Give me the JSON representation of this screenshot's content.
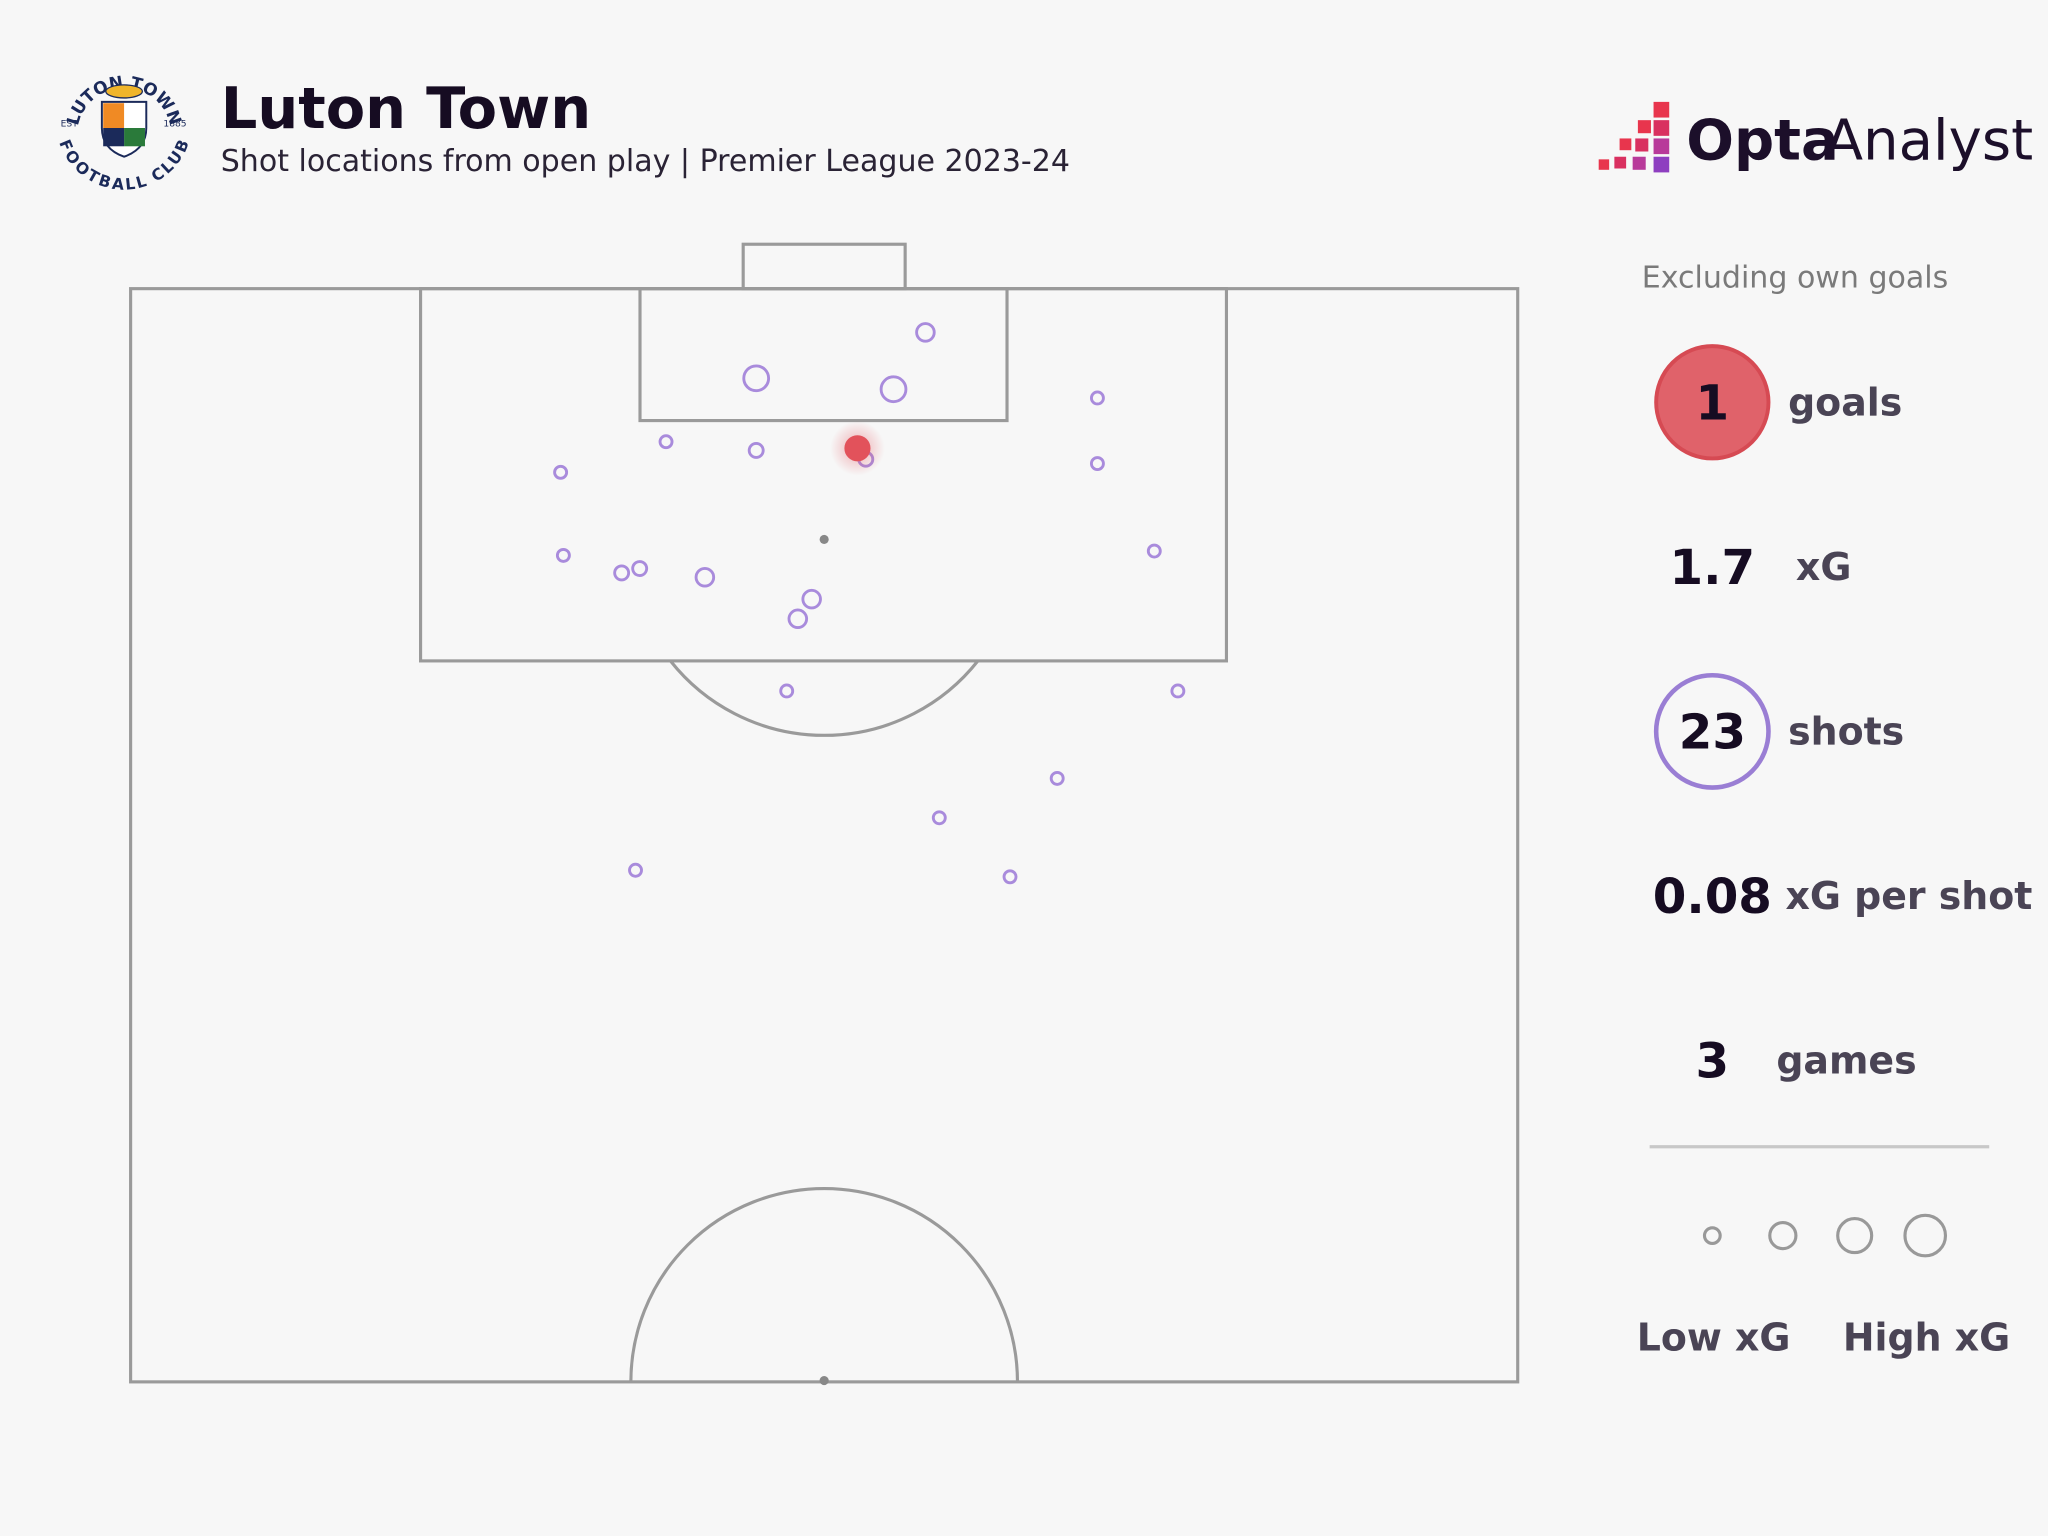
{
  "header": {
    "title": "Luton Town",
    "subtitle": "Shot locations from open play | Premier League 2023-24"
  },
  "logo": {
    "top": "LUTON TOWN",
    "bottom": "FOOTBALL CLUB",
    "left": "EST",
    "right": "1885"
  },
  "brand": {
    "bold": "Opta",
    "light": "Analyst"
  },
  "chart_data": {
    "type": "scatter",
    "xlim": [
      0,
      100
    ],
    "ylim": [
      50,
      100
    ],
    "color": "#a98bdc",
    "goal_color": "#e2525b",
    "x": [
      57.3,
      45.1,
      55.0,
      69.7,
      38.6,
      45.1,
      52.4,
      53.0,
      69.7,
      31.0,
      31.2,
      35.4,
      36.7,
      41.4,
      49.1,
      48.1,
      73.8,
      47.3,
      75.5,
      66.8,
      58.3,
      36.4,
      63.4
    ],
    "y": [
      98.0,
      95.9,
      95.4,
      95.0,
      93.0,
      92.6,
      92.7,
      92.2,
      92.0,
      91.6,
      87.8,
      87.0,
      87.2,
      86.8,
      85.8,
      84.9,
      88.0,
      81.6,
      81.6,
      77.6,
      75.8,
      73.4,
      73.1
    ],
    "xg": [
      0.1,
      0.25,
      0.25,
      0.03,
      0.03,
      0.05,
      0.25,
      0.05,
      0.03,
      0.03,
      0.03,
      0.05,
      0.05,
      0.1,
      0.1,
      0.1,
      0.03,
      0.03,
      0.03,
      0.03,
      0.03,
      0.03,
      0.03
    ],
    "goal": [
      false,
      false,
      false,
      false,
      false,
      false,
      true,
      false,
      false,
      false,
      false,
      false,
      false,
      false,
      false,
      false,
      false,
      false,
      false,
      false,
      false,
      false,
      false
    ]
  },
  "stats": {
    "note": "Excluding own goals",
    "items": [
      {
        "value": 1,
        "label": "goals"
      },
      {
        "value": 1.7,
        "label": "xG"
      },
      {
        "value": 23,
        "label": "shots"
      },
      {
        "value": 0.08,
        "label": "xG per shot"
      },
      {
        "value": 3,
        "label": "games"
      }
    ]
  },
  "legend": {
    "low": "Low xG",
    "high": "High xG"
  }
}
